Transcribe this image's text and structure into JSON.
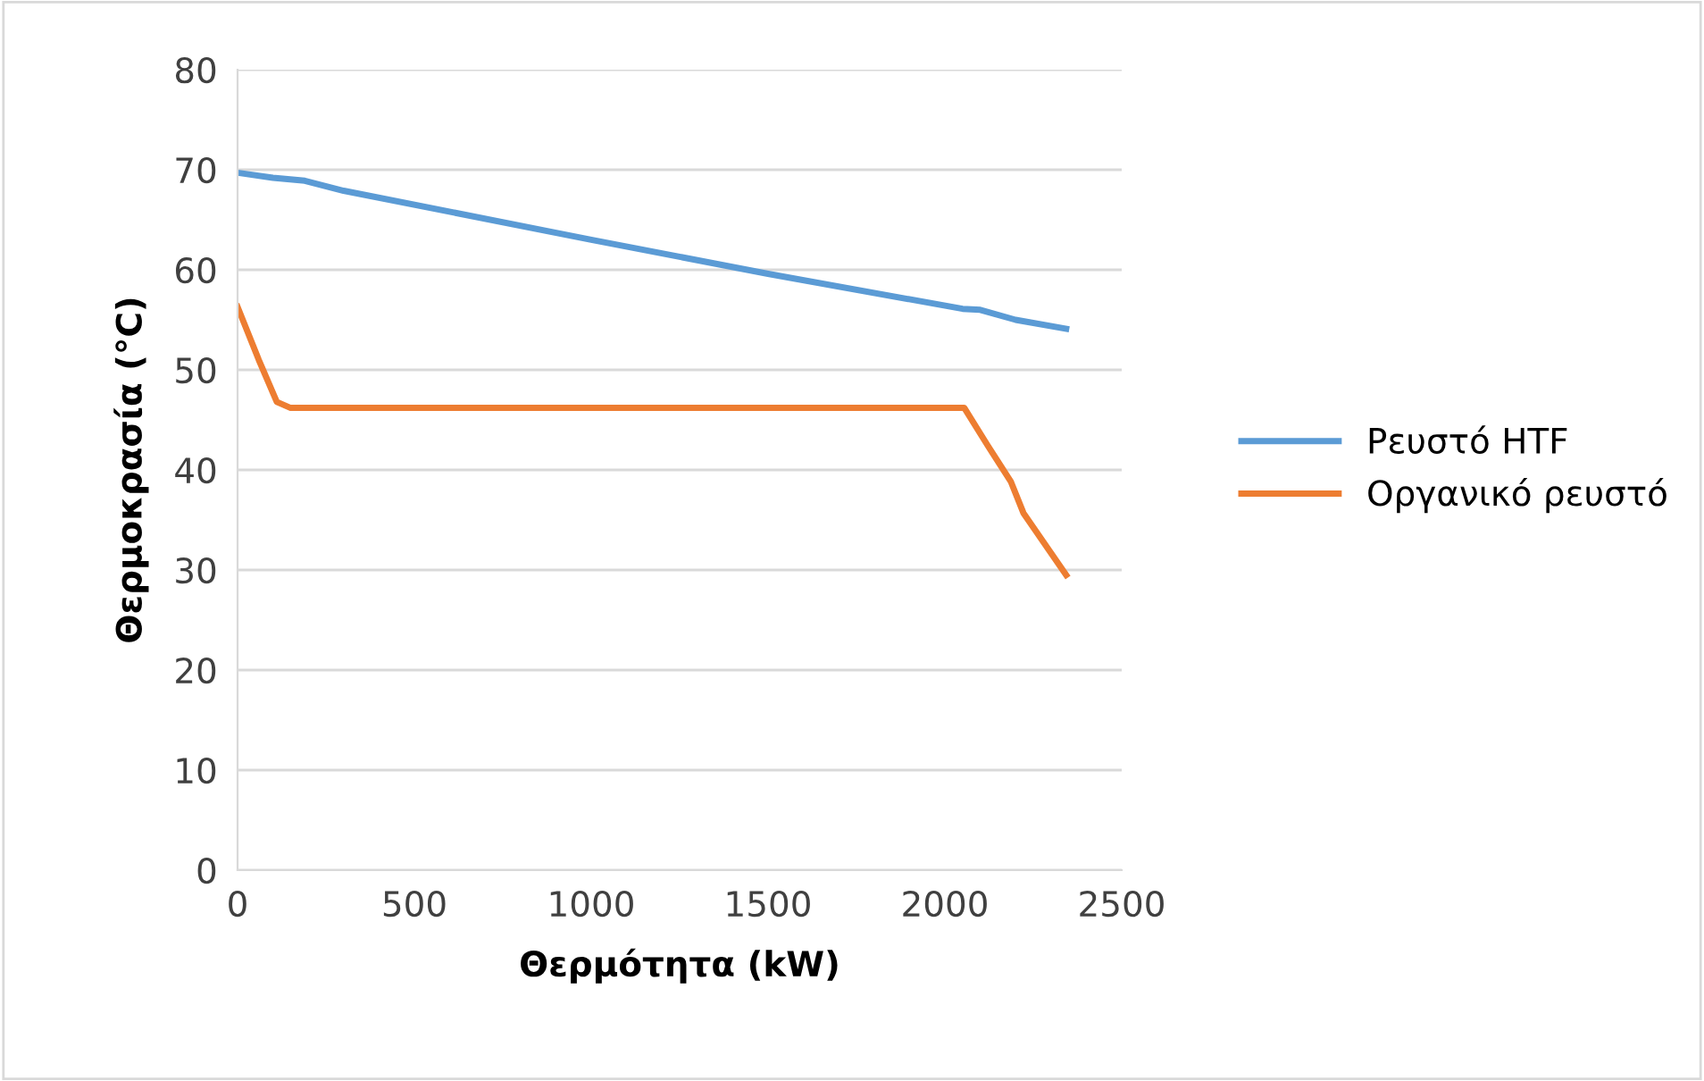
{
  "chart_data": {
    "type": "line",
    "xlabel": "Θερμότητα (kW)",
    "ylabel": "Θερμοκρασία (°C)",
    "xlim": [
      0,
      2500
    ],
    "xticks": [
      0,
      500,
      1000,
      1500,
      2000,
      2500
    ],
    "ylim": [
      0,
      80
    ],
    "yticks": [
      0,
      10,
      20,
      30,
      40,
      50,
      60,
      70,
      80
    ],
    "grid": "y",
    "legend": "right",
    "marker": "none",
    "line_style": "solid",
    "series": [
      {
        "name": "Ρευστό HTF",
        "color": "#5b9bd5",
        "x": [
          0,
          100,
          190,
          300,
          1000,
          1500,
          2050,
          2100,
          2200,
          2343
        ],
        "values": [
          69.7,
          69.2,
          68.9,
          67.9,
          63.0,
          59.6,
          56.1,
          56.0,
          55.0,
          54.1
        ]
      },
      {
        "name": "Οργανικό ρευστό",
        "color": "#ed7d31",
        "x": [
          0,
          60,
          111,
          150,
          500,
          1500,
          2055,
          2120,
          2187,
          2222,
          2343
        ],
        "values": [
          56.3,
          51.0,
          46.8,
          46.2,
          46.2,
          46.2,
          46.2,
          42.5,
          38.8,
          35.7,
          29.5
        ]
      }
    ]
  }
}
